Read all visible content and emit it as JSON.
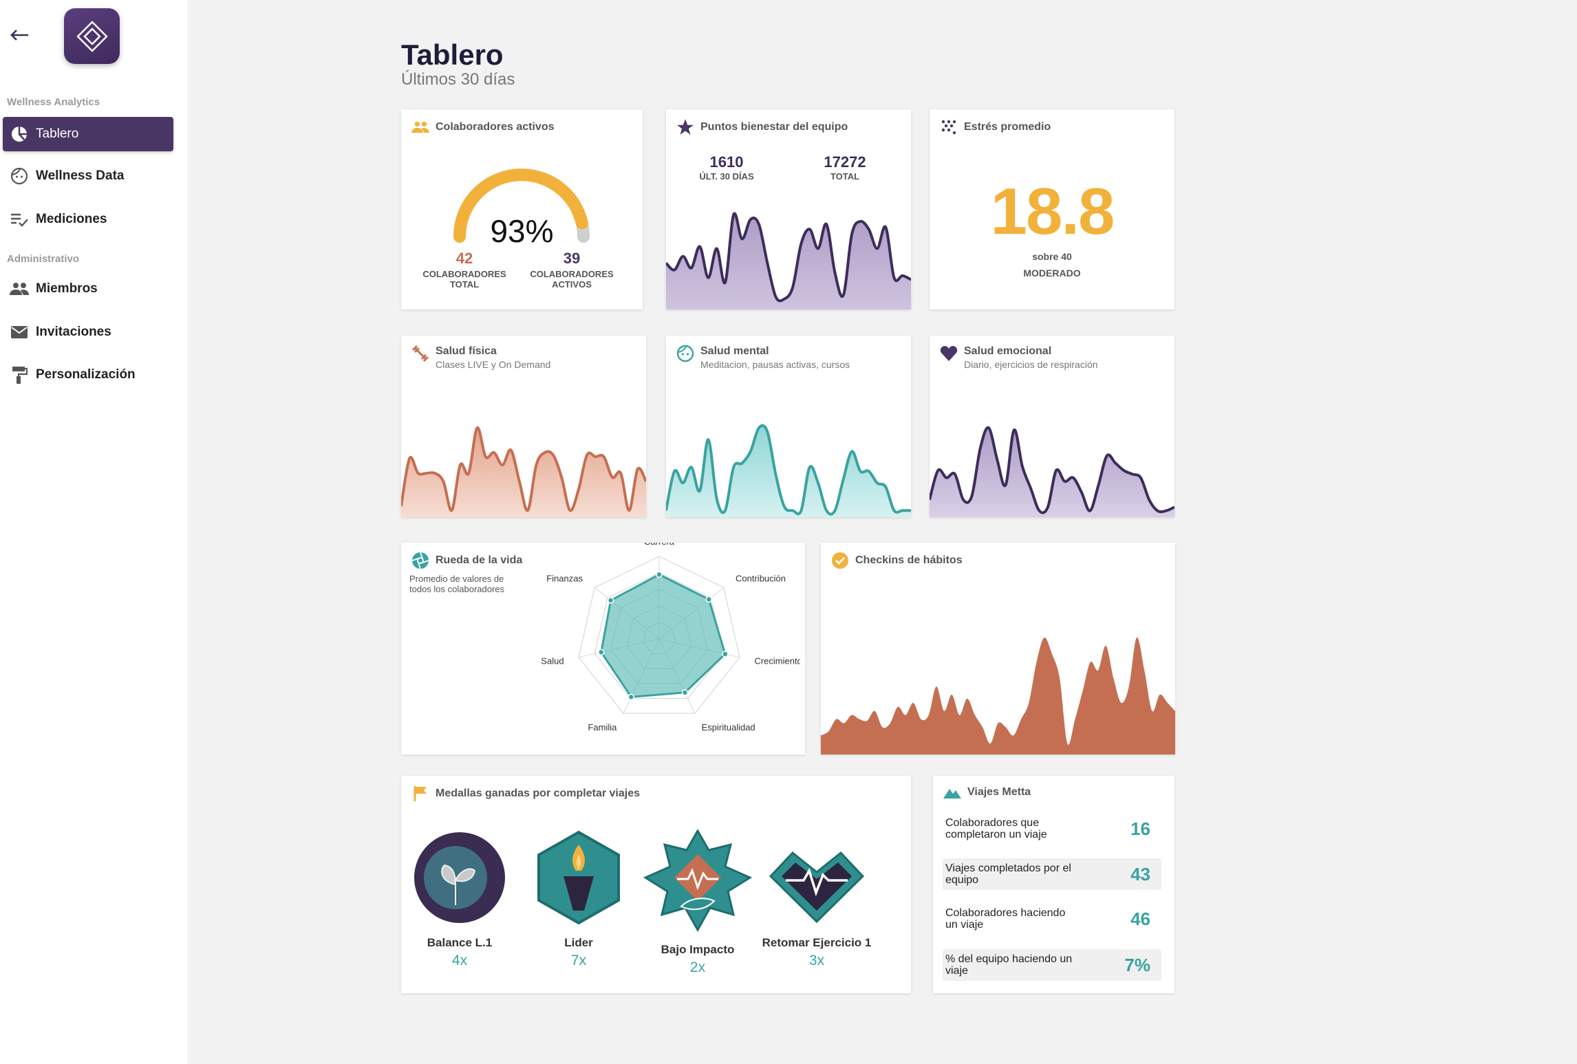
{
  "sidebar": {
    "section_analytics": "Wellness Analytics",
    "section_admin": "Administrativo",
    "items": [
      {
        "label": "Tablero",
        "icon": "pie-chart-icon"
      },
      {
        "label": "Wellness Data",
        "icon": "face-icon"
      },
      {
        "label": "Mediciones",
        "icon": "checklist-icon"
      },
      {
        "label": "Miembros",
        "icon": "people-icon"
      },
      {
        "label": "Invitaciones",
        "icon": "mail-icon"
      },
      {
        "label": "Personalización",
        "icon": "paint-roller-icon"
      }
    ]
  },
  "header": {
    "title": "Tablero",
    "subtitle": "Últimos 30 días"
  },
  "colaboradores": {
    "title": "Colaboradores activos",
    "percent": "93%",
    "percent_value": 93,
    "total_value": "42",
    "total_label": "COLABORADORES TOTAL",
    "active_value": "39",
    "active_label": "COLABORADORES ACTIVOS"
  },
  "puntos": {
    "title": "Puntos bienestar del equipo",
    "last30_value": "1610",
    "last30_label": "ÚLT. 30 DÍAS",
    "total_value": "17272",
    "total_label": "TOTAL",
    "series": [
      45,
      38,
      52,
      40,
      62,
      30,
      60,
      25,
      95,
      70,
      90,
      85,
      45,
      10,
      8,
      20,
      65,
      80,
      60,
      85,
      35,
      12,
      75,
      88,
      80,
      60,
      82,
      30,
      32,
      28
    ]
  },
  "estres": {
    "title": "Estrés promedio",
    "value": "18.8",
    "scale": "sobre 40",
    "level": "MODERADO"
  },
  "fisica": {
    "title": "Salud física",
    "subtitle": "Clases LIVE y On Demand",
    "series": [
      10,
      68,
      50,
      50,
      50,
      40,
      5,
      60,
      50,
      105,
      70,
      75,
      60,
      78,
      40,
      5,
      60,
      75,
      72,
      45,
      5,
      30,
      72,
      70,
      70,
      45,
      50,
      5,
      55,
      40
    ]
  },
  "mental": {
    "title": "Salud mental",
    "subtitle": "Meditacion, pausas activas, cursos",
    "series": [
      5,
      55,
      40,
      60,
      30,
      95,
      20,
      5,
      60,
      65,
      80,
      110,
      105,
      50,
      10,
      5,
      5,
      60,
      40,
      5,
      5,
      45,
      80,
      55,
      55,
      40,
      35,
      5,
      5,
      5
    ]
  },
  "emocional": {
    "title": "Salud emocional",
    "subtitle": "Diario, ejercicios de respiración",
    "series": [
      20,
      60,
      50,
      55,
      20,
      25,
      90,
      118,
      75,
      40,
      115,
      65,
      35,
      5,
      10,
      60,
      45,
      50,
      30,
      5,
      40,
      80,
      70,
      60,
      55,
      50,
      20,
      5,
      5,
      10
    ]
  },
  "rueda": {
    "title": "Rueda de la vida",
    "subtitle": "Promedio de valores de todos los colaboradores",
    "axes": [
      "Carrera",
      "Contribución",
      "Crecimiento",
      "Espiritualidad",
      "Familia",
      "Salud",
      "Finanzas"
    ],
    "values": [
      0.78,
      0.77,
      0.82,
      0.72,
      0.78,
      0.72,
      0.75
    ]
  },
  "checkins": {
    "title": "Checkins de hábitos",
    "series": [
      20,
      25,
      40,
      35,
      45,
      40,
      38,
      50,
      30,
      35,
      55,
      45,
      60,
      40,
      45,
      80,
      50,
      70,
      45,
      65,
      45,
      30,
      10,
      35,
      30,
      20,
      40,
      60,
      110,
      140,
      120,
      90,
      10,
      40,
      75,
      110,
      100,
      130,
      90,
      60,
      80,
      140,
      100,
      50,
      70,
      60,
      50
    ]
  },
  "medallas": {
    "title": "Medallas ganadas por completar viajes",
    "items": [
      {
        "name": "Balance L.1",
        "count": "4x"
      },
      {
        "name": "Lider",
        "count": "7x"
      },
      {
        "name": "Bajo Impacto",
        "count": "2x"
      },
      {
        "name": "Retomar Ejercicio 1",
        "count": "3x"
      }
    ]
  },
  "viajes": {
    "title": "Viajes Metta",
    "rows": [
      {
        "label": "Colaboradores que completaron un viaje",
        "value": "16"
      },
      {
        "label": "Viajes completados por el equipo",
        "value": "43"
      },
      {
        "label": "Colaboradores haciendo un viaje",
        "value": "46"
      },
      {
        "label": "% del equipo haciendo un viaje",
        "value": "7%"
      }
    ]
  },
  "colors": {
    "purple": "#4a3664",
    "orange": "#f2b13b",
    "terracotta": "#c56f52",
    "teal": "#3aa39f"
  }
}
